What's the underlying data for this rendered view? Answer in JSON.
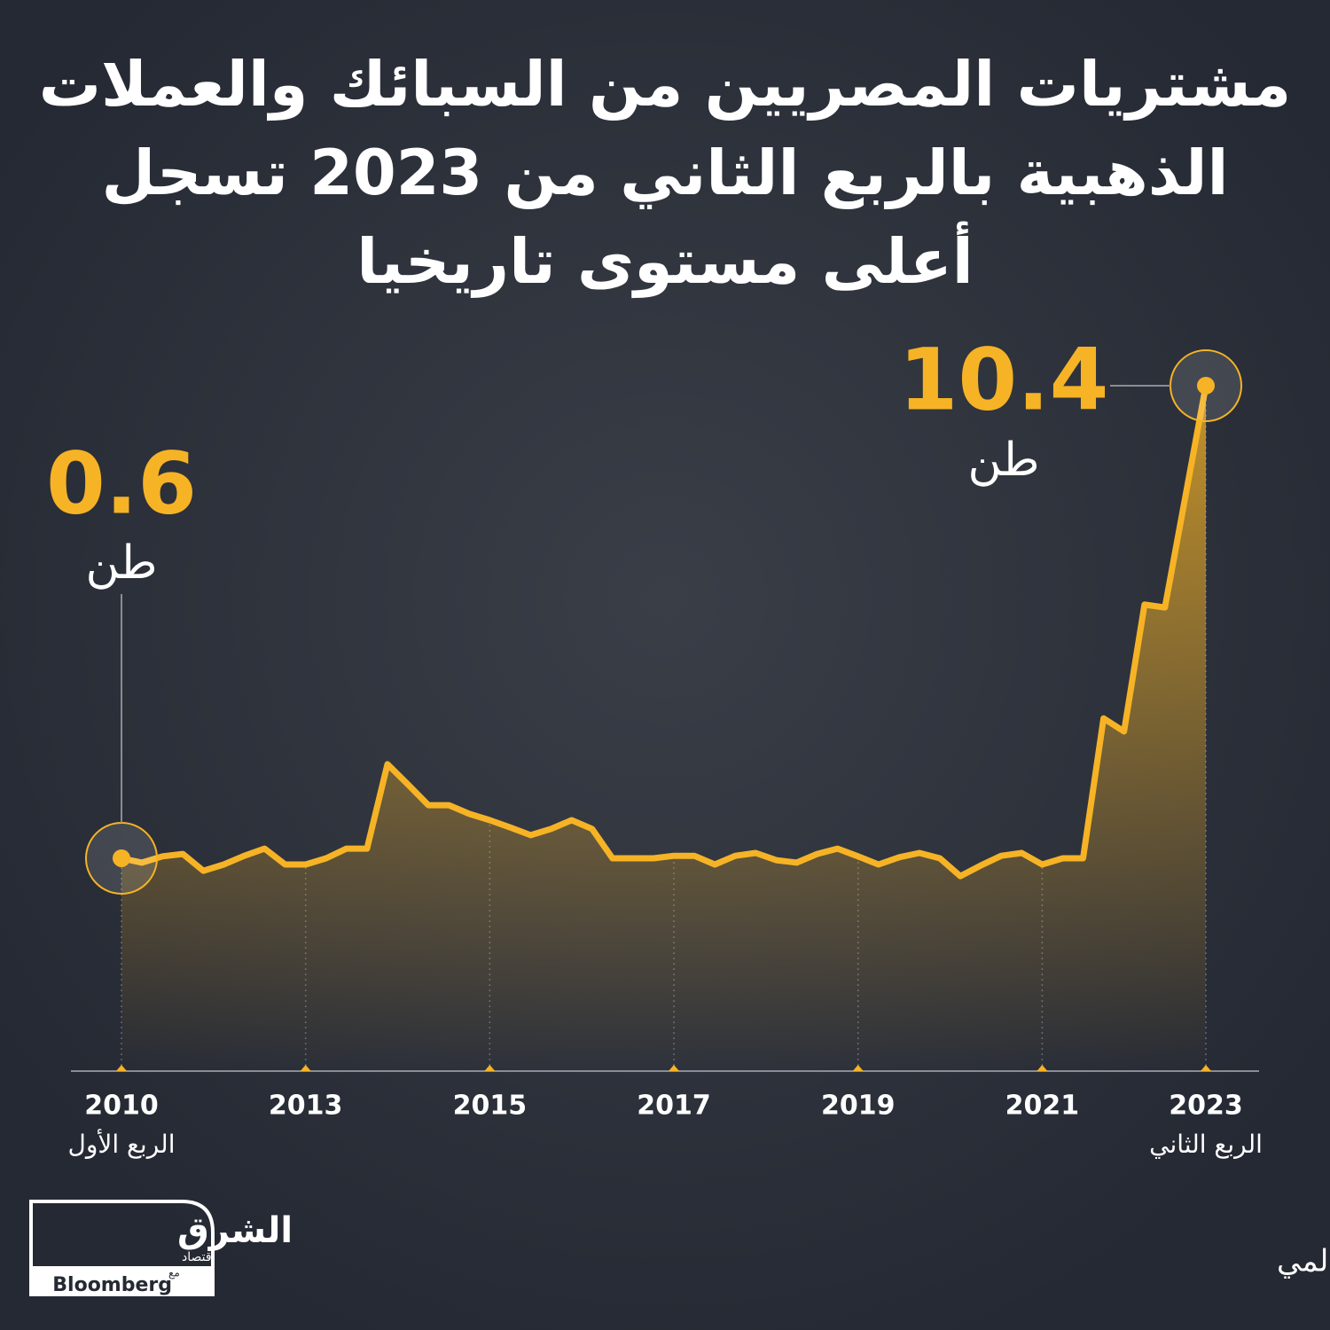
{
  "chart_data": {
    "type": "line",
    "title": [
      "مشتريات المصريين من السبائك والعملات",
      "الذهبية بالربع الثاني من 2023 تسجل",
      "أعلى مستوى تاريخيا"
    ],
    "categories": [
      "2010",
      null,
      null,
      null,
      null,
      null,
      null,
      null,
      null,
      "2013",
      null,
      null,
      null,
      null,
      null,
      null,
      null,
      null,
      "2015",
      null,
      null,
      null,
      null,
      null,
      null,
      null,
      null,
      "2017",
      null,
      null,
      null,
      null,
      null,
      null,
      null,
      null,
      "2019",
      null,
      null,
      null,
      null,
      null,
      null,
      null,
      null,
      "2021",
      null,
      null,
      null,
      null,
      null,
      null,
      null,
      "2023"
    ],
    "category_notes": {
      "first": "الربع الأول",
      "last": "الربع الثاني"
    },
    "values": [
      0.6,
      0.51,
      0.64,
      0.69,
      0.34,
      0.47,
      0.65,
      0.8,
      0.47,
      0.47,
      0.6,
      0.8,
      0.8,
      2.55,
      2.13,
      1.7,
      1.7,
      1.52,
      1.39,
      1.24,
      1.08,
      1.21,
      1.39,
      1.21,
      0.6,
      0.6,
      0.6,
      0.65,
      0.65,
      0.47,
      0.65,
      0.71,
      0.56,
      0.51,
      0.69,
      0.8,
      0.64,
      0.47,
      0.62,
      0.71,
      0.6,
      0.23,
      0.45,
      0.65,
      0.71,
      0.47,
      0.6,
      0.6,
      3.5,
      3.23,
      5.86,
      5.8,
      8.1,
      10.4
    ],
    "unit": "طن",
    "color": "#f6b325",
    "source": "المصدر: مجلس الذهب العالمي",
    "logo": {
      "name": "الشرق",
      "sub": "اقتصاد",
      "with": "مع",
      "partner": "Bloomberg"
    }
  }
}
